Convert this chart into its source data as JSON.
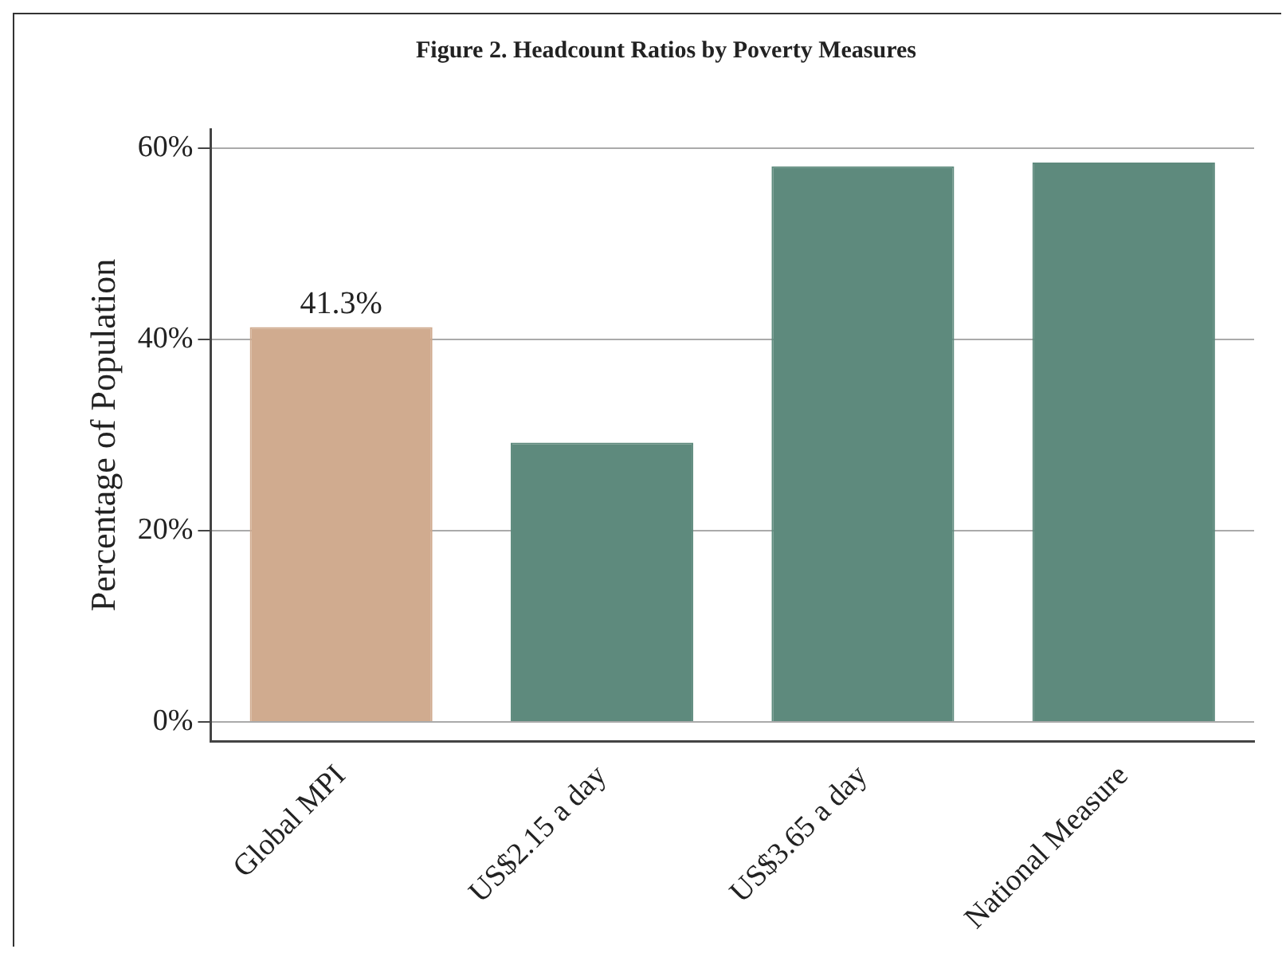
{
  "chart_data": {
    "type": "bar",
    "title": "Figure 2. Headcount Ratios by Poverty Measures",
    "ylabel": "Percentage of Population",
    "categories": [
      "Global MPI",
      "US$2.15 a day",
      "US$3.65 a day",
      "National Measure"
    ],
    "values": [
      41.3,
      29.2,
      58.1,
      58.5
    ],
    "colors": [
      "#d0ab8f",
      "#5e8a7d",
      "#5e8a7d",
      "#5e8a7d"
    ],
    "value_labels": [
      "41.3%",
      null,
      null,
      null
    ],
    "ylim": [
      -2,
      62
    ],
    "yticks": [
      {
        "value": 0,
        "label": "0%"
      },
      {
        "value": 20,
        "label": "20%"
      },
      {
        "value": 40,
        "label": "40%"
      },
      {
        "value": 60,
        "label": "60%"
      }
    ],
    "grid": "y"
  }
}
